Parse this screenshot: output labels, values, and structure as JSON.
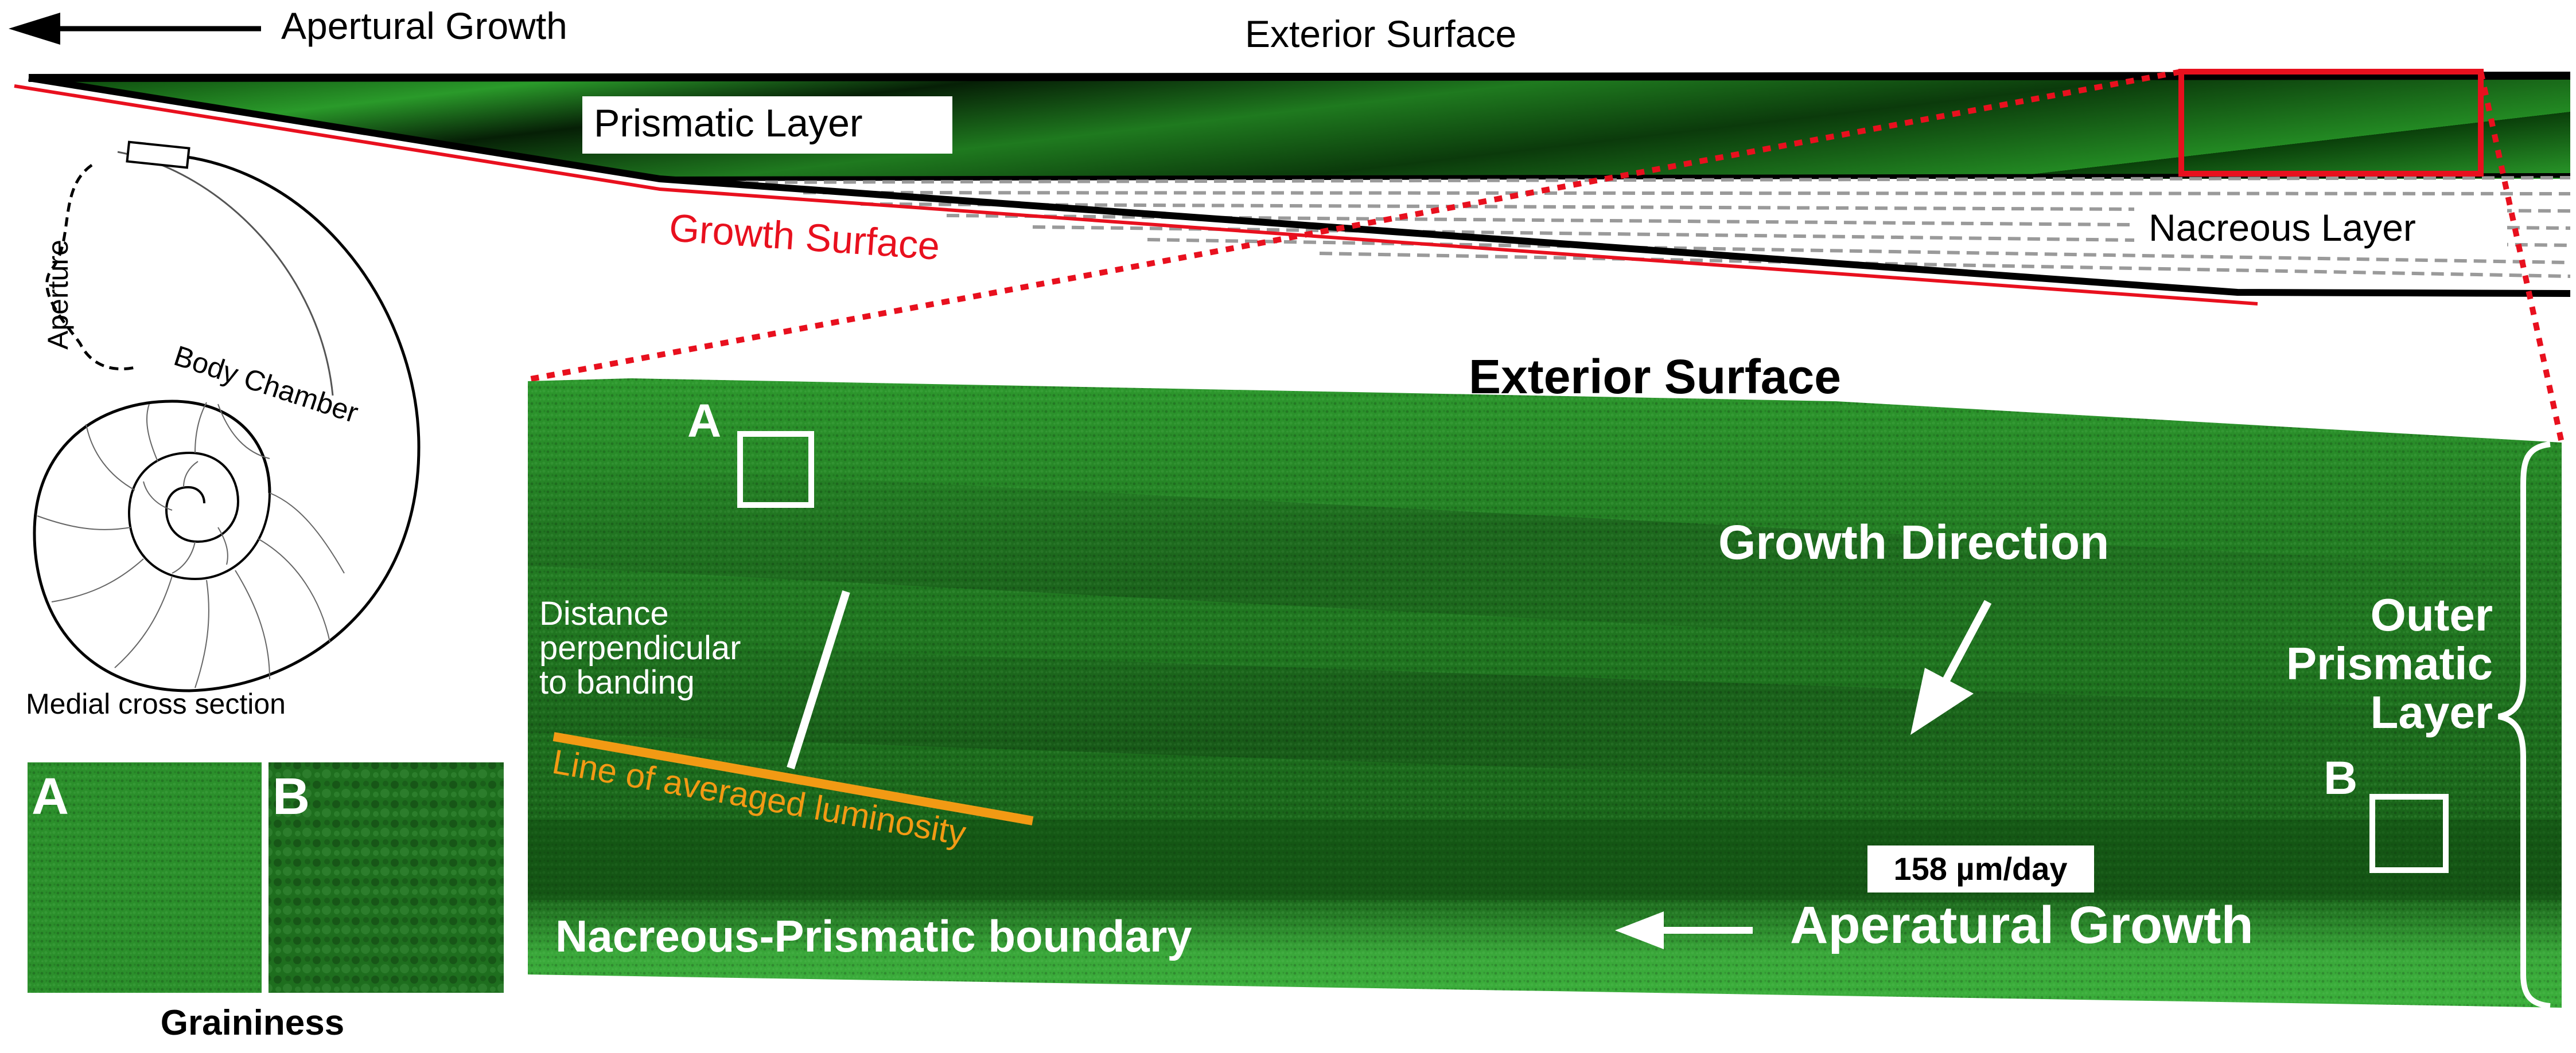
{
  "top": {
    "apertural_growth": "Apertural Growth",
    "exterior_surface": "Exterior Surface",
    "prismatic_layer": "Prismatic Layer",
    "growth_surface": "Growth Surface",
    "nacreous_layer": "Nacreous Layer"
  },
  "shell": {
    "aperture": "Aperture",
    "body_chamber": "Body Chamber",
    "caption": "Medial cross section"
  },
  "inset": {
    "label_a": "A",
    "label_b": "B",
    "caption": "Graininess"
  },
  "micrograph": {
    "exterior_surface": "Exterior Surface",
    "box_a": "A",
    "box_b": "B",
    "distance_line1": "Distance",
    "distance_line2": "perpendicular",
    "distance_line3": "to banding",
    "luminosity_line": "Line of averaged luminosity",
    "growth_direction": "Growth Direction",
    "rate": "158 µm/day",
    "aperatural_growth": "Aperatural Growth",
    "boundary": "Nacreous-Prismatic boundary",
    "outer_line1": "Outer",
    "outer_line2": "Prismatic",
    "outer_line3": "Layer"
  },
  "colors": {
    "red": "#e8101e",
    "green": "#1f7a1f",
    "orange": "#f29a14",
    "gray_dashed": "#9a9a9a"
  }
}
